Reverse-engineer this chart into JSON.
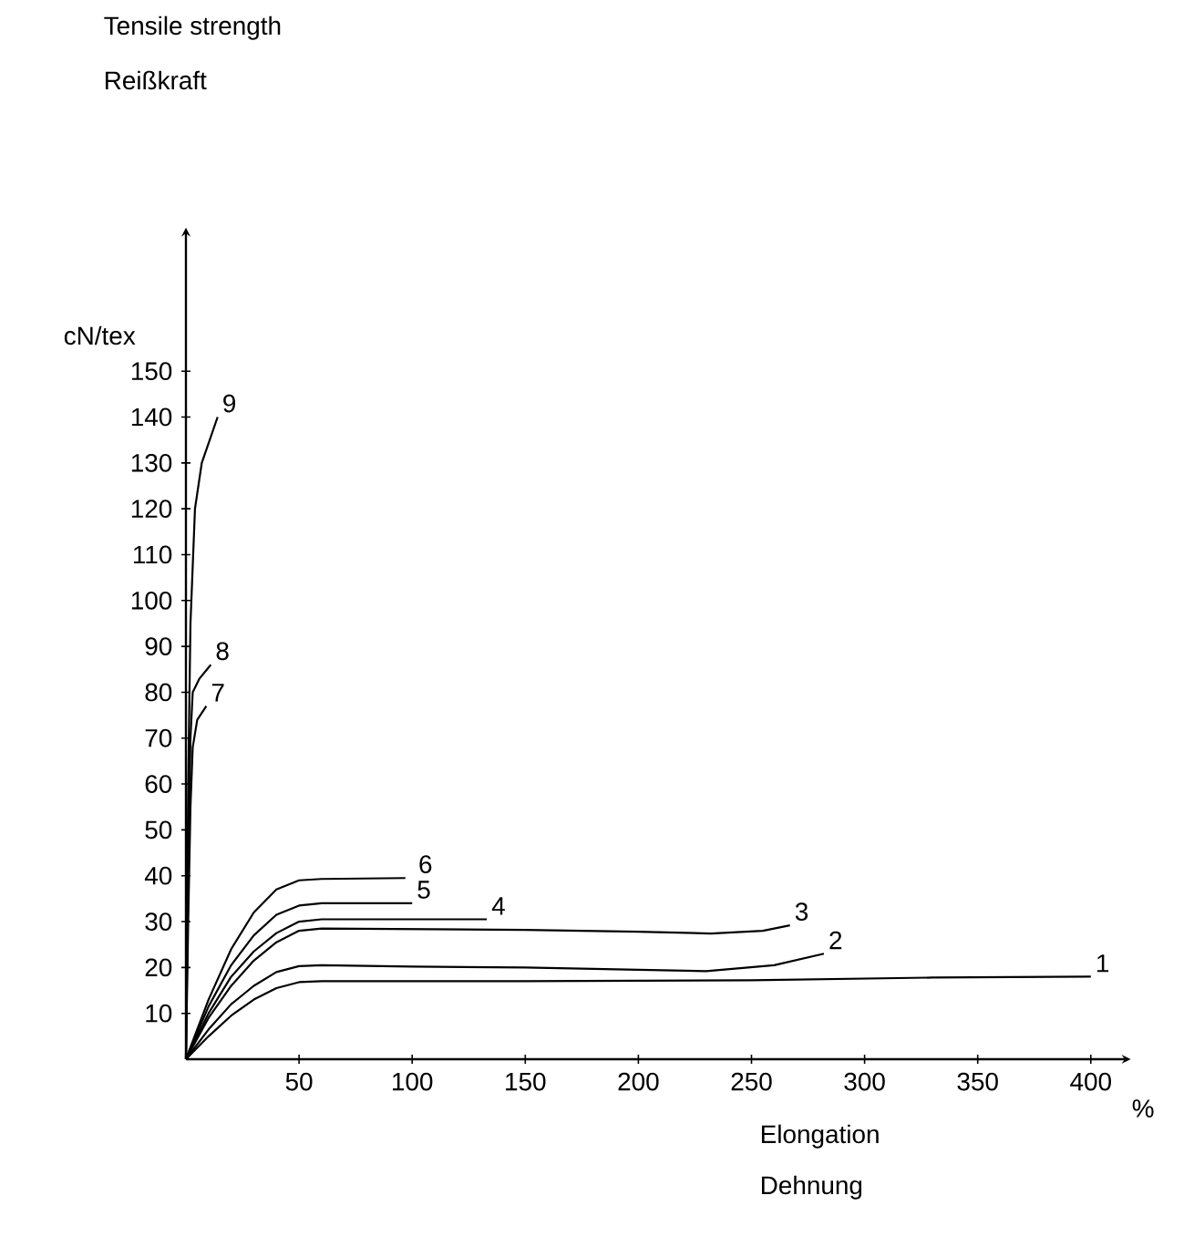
{
  "chart_data": {
    "type": "line",
    "title": "Tensile strength",
    "subtitle": "Reißkraft",
    "ylabel": "cN/tex",
    "xlabel": "Elongation",
    "annotations": [
      "Dehnung",
      "%"
    ],
    "xlim": [
      0,
      415
    ],
    "ylim": [
      0,
      180
    ],
    "xticks": [
      50,
      100,
      150,
      200,
      250,
      300,
      350,
      400
    ],
    "yticks": [
      10,
      20,
      30,
      40,
      50,
      60,
      70,
      80,
      90,
      100,
      110,
      120,
      130,
      140,
      150
    ],
    "series": [
      {
        "name": "1",
        "color": "#000000",
        "x": [
          0,
          10,
          20,
          30,
          40,
          50,
          60,
          150,
          250,
          330,
          400
        ],
        "values": [
          0,
          5,
          9.5,
          13,
          15.5,
          16.8,
          17,
          17,
          17.2,
          17.8,
          18
        ]
      },
      {
        "name": "2",
        "color": "#000000",
        "x": [
          0,
          10,
          20,
          30,
          40,
          50,
          60,
          100,
          150,
          200,
          230,
          260,
          282
        ],
        "values": [
          0,
          6.5,
          12,
          16,
          19,
          20.3,
          20.5,
          20.2,
          20,
          19.5,
          19.2,
          20.5,
          23
        ]
      },
      {
        "name": "3",
        "color": "#000000",
        "x": [
          0,
          10,
          20,
          30,
          40,
          50,
          60,
          150,
          200,
          232,
          255,
          267
        ],
        "values": [
          0,
          9,
          16,
          21.5,
          25.5,
          28,
          28.5,
          28.2,
          27.8,
          27.4,
          28,
          29.2
        ]
      },
      {
        "name": "4",
        "color": "#000000",
        "x": [
          0,
          10,
          20,
          30,
          40,
          50,
          60,
          133
        ],
        "values": [
          0,
          10,
          18,
          23.5,
          27.5,
          30,
          30.5,
          30.5
        ]
      },
      {
        "name": "5",
        "color": "#000000",
        "x": [
          0,
          10,
          20,
          30,
          40,
          50,
          60,
          100
        ],
        "values": [
          0,
          11.5,
          20.5,
          27,
          31.5,
          33.5,
          34,
          34
        ]
      },
      {
        "name": "6",
        "color": "#000000",
        "x": [
          0,
          10,
          20,
          30,
          40,
          50,
          60,
          97
        ],
        "values": [
          0,
          13,
          24,
          32,
          37,
          39,
          39.3,
          39.5
        ]
      },
      {
        "name": "7",
        "color": "#000000",
        "x": [
          0,
          1,
          2,
          3,
          5,
          9
        ],
        "values": [
          0,
          30,
          55,
          68,
          74,
          77
        ]
      },
      {
        "name": "8",
        "color": "#000000",
        "x": [
          0,
          1,
          2,
          3,
          6,
          11
        ],
        "values": [
          0,
          40,
          70,
          80,
          83,
          86
        ]
      },
      {
        "name": "9",
        "color": "#000000",
        "x": [
          0,
          1,
          2,
          4,
          7,
          14
        ],
        "values": [
          0,
          60,
          95,
          120,
          130,
          140
        ]
      }
    ]
  }
}
